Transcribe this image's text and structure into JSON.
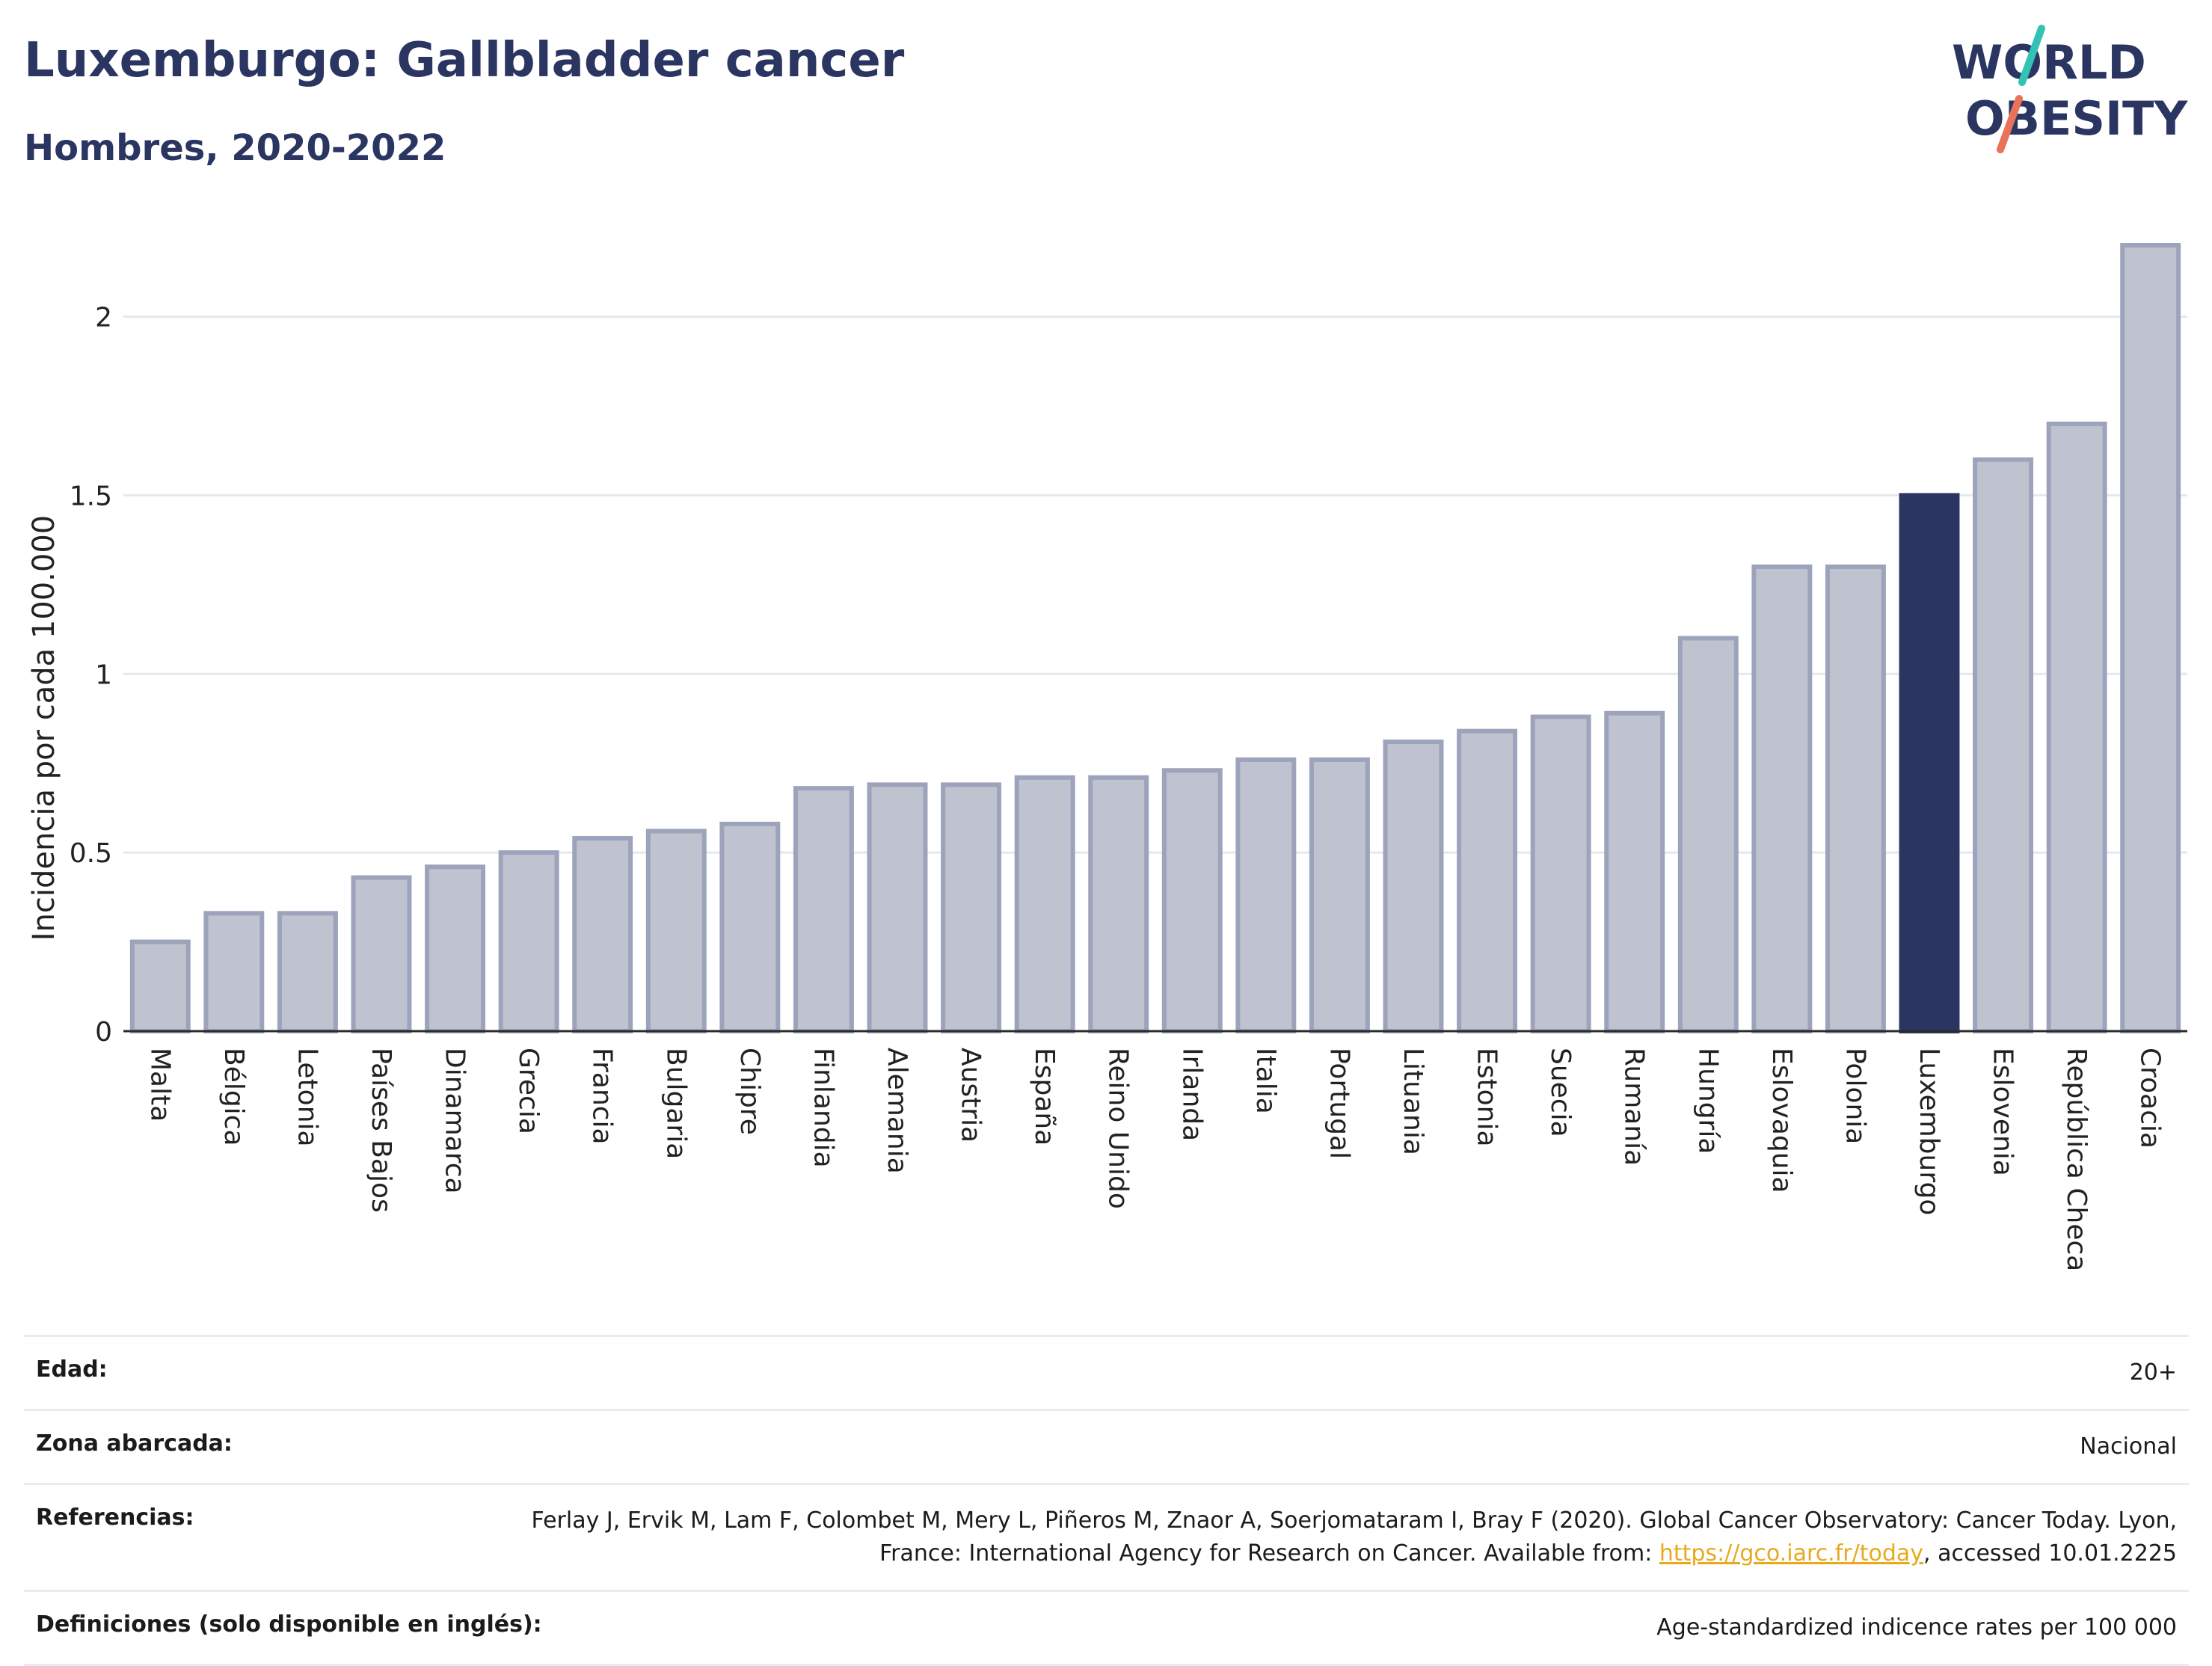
{
  "header": {
    "title": "Luxemburgo: Gallbladder cancer",
    "subtitle": "Hombres, 2020-2022",
    "logo_line1": "WORLD",
    "logo_line2": "OBESITY"
  },
  "chart_data": {
    "type": "bar",
    "title": "Luxemburgo: Gallbladder cancer",
    "subtitle": "Hombres, 2020-2022",
    "xlabel": "",
    "ylabel": "Incidencia por cada 100.000",
    "ylim": [
      0,
      2.2
    ],
    "yticks": [
      0,
      0.5,
      1,
      1.5,
      2
    ],
    "ytick_labels": [
      "0",
      "0.5",
      "1",
      "1.5",
      "2"
    ],
    "grid": true,
    "highlight": "Luxemburgo",
    "colors": {
      "bar": "#bfc3d0",
      "bar_border": "#9ca3bb",
      "highlight": "#2b3561"
    },
    "categories": [
      "Malta",
      "Bélgica",
      "Letonia",
      "Países Bajos",
      "Dinamarca",
      "Grecia",
      "Francia",
      "Bulgaria",
      "Chipre",
      "Finlandia",
      "Alemania",
      "Austria",
      "España",
      "Reino Unido",
      "Irlanda",
      "Italia",
      "Portugal",
      "Lituania",
      "Estonia",
      "Suecia",
      "Rumanía",
      "Hungría",
      "Eslovaquia",
      "Polonia",
      "Luxemburgo",
      "Eslovenia",
      "República Checa",
      "Croacia"
    ],
    "values": [
      0.25,
      0.33,
      0.33,
      0.43,
      0.46,
      0.5,
      0.54,
      0.56,
      0.58,
      0.68,
      0.69,
      0.69,
      0.71,
      0.71,
      0.73,
      0.76,
      0.76,
      0.81,
      0.84,
      0.88,
      0.89,
      1.1,
      1.3,
      1.3,
      1.5,
      1.6,
      1.7,
      2.2
    ]
  },
  "meta": {
    "age_label": "Edad:",
    "age_value": "20+",
    "zone_label": "Zona abarcada:",
    "zone_value": "Nacional",
    "refs_label": "Referencias:",
    "refs_text_1": "Ferlay J, Ervik M, Lam F, Colombet M, Mery L, Piñeros M, Znaor A, Soerjomataram I, Bray F (2020). Global Cancer Observatory: Cancer Today. Lyon, France: International Agency for Research on Cancer. Available from: ",
    "refs_link": "https://gco.iarc.fr/today",
    "refs_text_2": ", accessed 10.01.2225",
    "defs_label": "Definiciones (solo disponible en inglés):",
    "defs_value": "Age-standardized indicence rates per 100 000"
  }
}
